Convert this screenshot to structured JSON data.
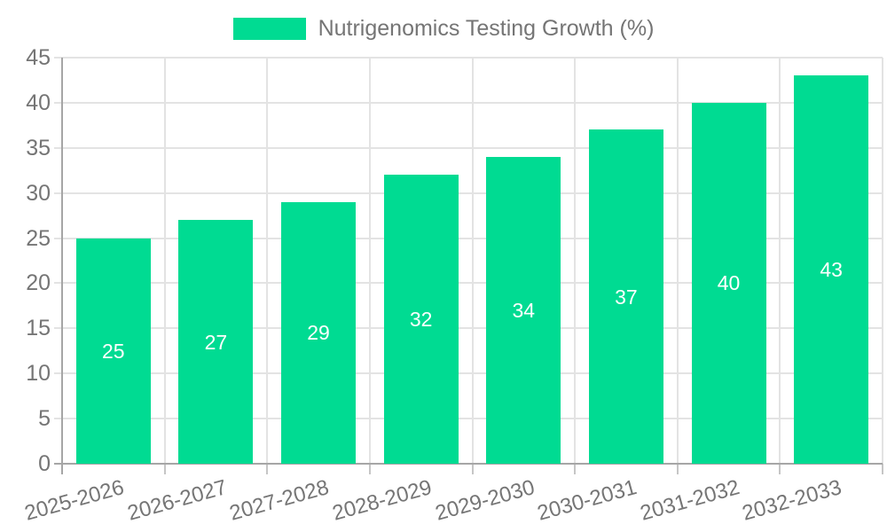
{
  "legend": {
    "label": "Nutrigenomics Testing Growth (%)"
  },
  "colors": {
    "bar": "#00db92",
    "axis_text": "#757575",
    "value_label": "#ffffff",
    "gridline": "#e3e3e3",
    "tick": "#c6c6c6",
    "axis_line": "#a6a6a6",
    "background": "#ffffff"
  },
  "chart_data": {
    "type": "bar",
    "title": "Nutrigenomics Testing Growth (%)",
    "categories": [
      "2025-2026",
      "2026-2027",
      "2027-2028",
      "2028-2029",
      "2029-2030",
      "2030-2031",
      "2031-2032",
      "2032-2033"
    ],
    "values": [
      25,
      27,
      29,
      32,
      34,
      37,
      40,
      43
    ],
    "xlabel": "",
    "ylabel": "",
    "ylim": [
      0,
      45
    ],
    "yticks": [
      0,
      5,
      10,
      15,
      20,
      25,
      30,
      35,
      40,
      45
    ],
    "grid": true,
    "legend_position": "top",
    "bar_value_labels": true,
    "x_label_rotation_deg": -15.5
  }
}
